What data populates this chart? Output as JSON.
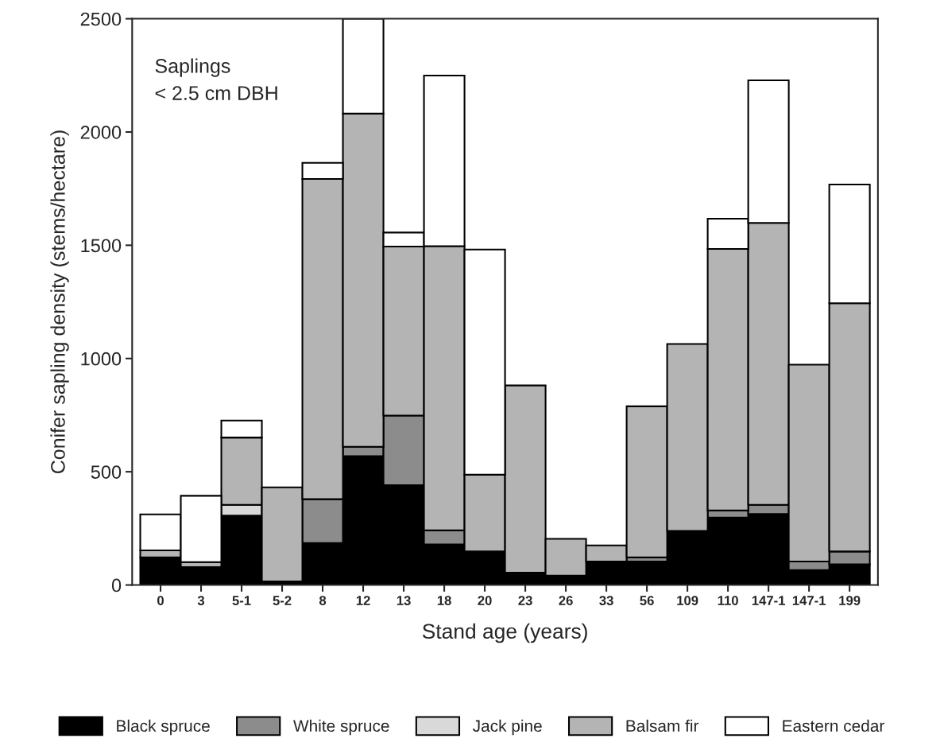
{
  "chart_data": {
    "type": "bar",
    "stacked": true,
    "xlabel": "Stand age (years)",
    "ylabel": "Conifer sapling density (stems/hectare)",
    "annotations": [
      "Saplings\n< 2.5 cm DBH"
    ],
    "categories": [
      "0",
      "3",
      "5-1",
      "5-2",
      "8",
      "12",
      "13",
      "18",
      "20",
      "23",
      "26",
      "33",
      "56",
      "109",
      "110",
      "147-1",
      "147-1",
      "199"
    ],
    "series": [
      {
        "name": "Black spruce",
        "color": "#000000",
        "values": [
          122,
          79,
          306,
          16,
          185,
          569,
          441,
          179,
          148,
          54,
          41,
          104,
          104,
          239,
          298,
          313,
          66,
          91
        ]
      },
      {
        "name": "White spruce",
        "color": "#8c8c8c",
        "values": [
          null,
          null,
          null,
          null,
          194,
          41,
          307,
          62,
          null,
          null,
          null,
          null,
          18,
          null,
          31,
          41,
          38,
          57
        ]
      },
      {
        "name": "Jack pine",
        "color": "#d9d9d9",
        "values": [
          null,
          null,
          48,
          null,
          null,
          null,
          null,
          null,
          null,
          null,
          null,
          null,
          null,
          null,
          null,
          null,
          null,
          null
        ]
      },
      {
        "name": "Balsam fir",
        "color": "#b4b4b4",
        "values": [
          31,
          22,
          297,
          415,
          1414,
          1471,
          746,
          1255,
          339,
          827,
          163,
          71,
          667,
          825,
          1155,
          1245,
          869,
          1096
        ]
      },
      {
        "name": "Eastern cedar",
        "color": "#ffffff",
        "values": [
          159,
          293,
          75,
          null,
          71,
          419,
          62,
          753,
          994,
          null,
          null,
          null,
          null,
          null,
          133,
          629,
          null,
          524
        ]
      }
    ],
    "ylim": [
      0,
      2500
    ],
    "yticks": [
      0,
      500,
      1000,
      1500,
      2000,
      2500
    ],
    "grid": false,
    "legend": "bottom"
  }
}
